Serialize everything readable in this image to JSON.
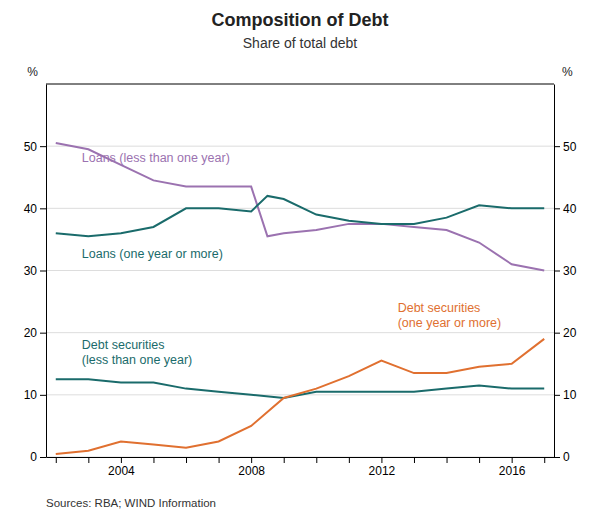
{
  "chart_data": {
    "type": "line",
    "title": "Composition of Debt",
    "subtitle": "Share of total debt",
    "ylabel": "%",
    "y2label": "%",
    "source": "Sources: RBA; WIND Information",
    "xlim": [
      2001.7,
      2017.3
    ],
    "xticks": [
      {
        "value": 2002,
        "label": null
      },
      {
        "value": 2003,
        "label": null
      },
      2004,
      {
        "value": 2005,
        "label": null
      },
      {
        "value": 2006,
        "label": null
      },
      {
        "value": 2007,
        "label": null
      },
      2008,
      {
        "value": 2009,
        "label": null
      },
      {
        "value": 2010,
        "label": null
      },
      {
        "value": 2011,
        "label": null
      },
      2012,
      {
        "value": 2013,
        "label": null
      },
      {
        "value": 2014,
        "label": null
      },
      {
        "value": 2015,
        "label": null
      },
      2016,
      {
        "value": 2017,
        "label": null
      }
    ],
    "ylim": [
      0,
      60
    ],
    "yticks": [
      0,
      10,
      20,
      30,
      40,
      50
    ],
    "y2lim": [
      0,
      60
    ],
    "y2ticks": [
      0,
      10,
      20,
      30,
      40,
      50
    ],
    "grid": true,
    "series": [
      {
        "color": "#9b72b0",
        "x": [
          2002,
          2003,
          2004,
          2005,
          2006,
          2007,
          2008,
          2008.5,
          2009,
          2010,
          2011,
          2012,
          2013,
          2014,
          2015,
          2016,
          2017
        ],
        "values": [
          50.5,
          49.5,
          47.0,
          44.5,
          43.5,
          43.5,
          43.5,
          35.5,
          36.0,
          36.5,
          37.5,
          37.5,
          37.0,
          36.5,
          34.5,
          31.0,
          30.0
        ]
      },
      {
        "color": "#1a6b6b",
        "x": [
          2002,
          2003,
          2004,
          2005,
          2006,
          2007,
          2008,
          2008.5,
          2009,
          2010,
          2011,
          2012,
          2013,
          2014,
          2015,
          2016,
          2017
        ],
        "values": [
          36.0,
          35.5,
          36.0,
          37.0,
          40.0,
          40.0,
          39.5,
          42.0,
          41.5,
          39.0,
          38.0,
          37.5,
          37.5,
          38.5,
          40.5,
          40.0,
          40.0
        ]
      },
      {
        "color": "#1a6b6b",
        "x": [
          2002,
          2003,
          2004,
          2005,
          2006,
          2007,
          2008,
          2009,
          2010,
          2011,
          2012,
          2013,
          2014,
          2015,
          2016,
          2017
        ],
        "values": [
          12.5,
          12.5,
          12.0,
          12.0,
          11.0,
          10.5,
          10.0,
          9.5,
          10.5,
          10.5,
          10.5,
          10.5,
          11.0,
          11.5,
          11.0,
          11.0
        ]
      },
      {
        "color": "#e07030",
        "x": [
          2002,
          2003,
          2004,
          2005,
          2006,
          2007,
          2008,
          2009,
          2010,
          2011,
          2012,
          2013,
          2014,
          2015,
          2016,
          2017
        ],
        "values": [
          0.5,
          1.0,
          2.5,
          2.0,
          1.5,
          2.5,
          5.0,
          9.5,
          11.0,
          13.0,
          15.5,
          13.5,
          13.5,
          14.5,
          15.0,
          19.0
        ]
      }
    ],
    "annotations": [
      {
        "x": 2002.8,
        "y": 47.0,
        "text": "Loans (less than one year)",
        "color": "#9b72b0"
      },
      {
        "x": 2002.8,
        "y": 31.5,
        "text": "Loans (one year or more)",
        "color": "#1a6b6b"
      },
      {
        "x": 2002.8,
        "y": 14.5,
        "text": "Debt securities\n(less than one year)",
        "color": "#1a6b6b"
      },
      {
        "x": 2012.5,
        "y": 20.5,
        "text": "Debt securities\n(one year or more)",
        "color": "#e07030"
      }
    ]
  }
}
